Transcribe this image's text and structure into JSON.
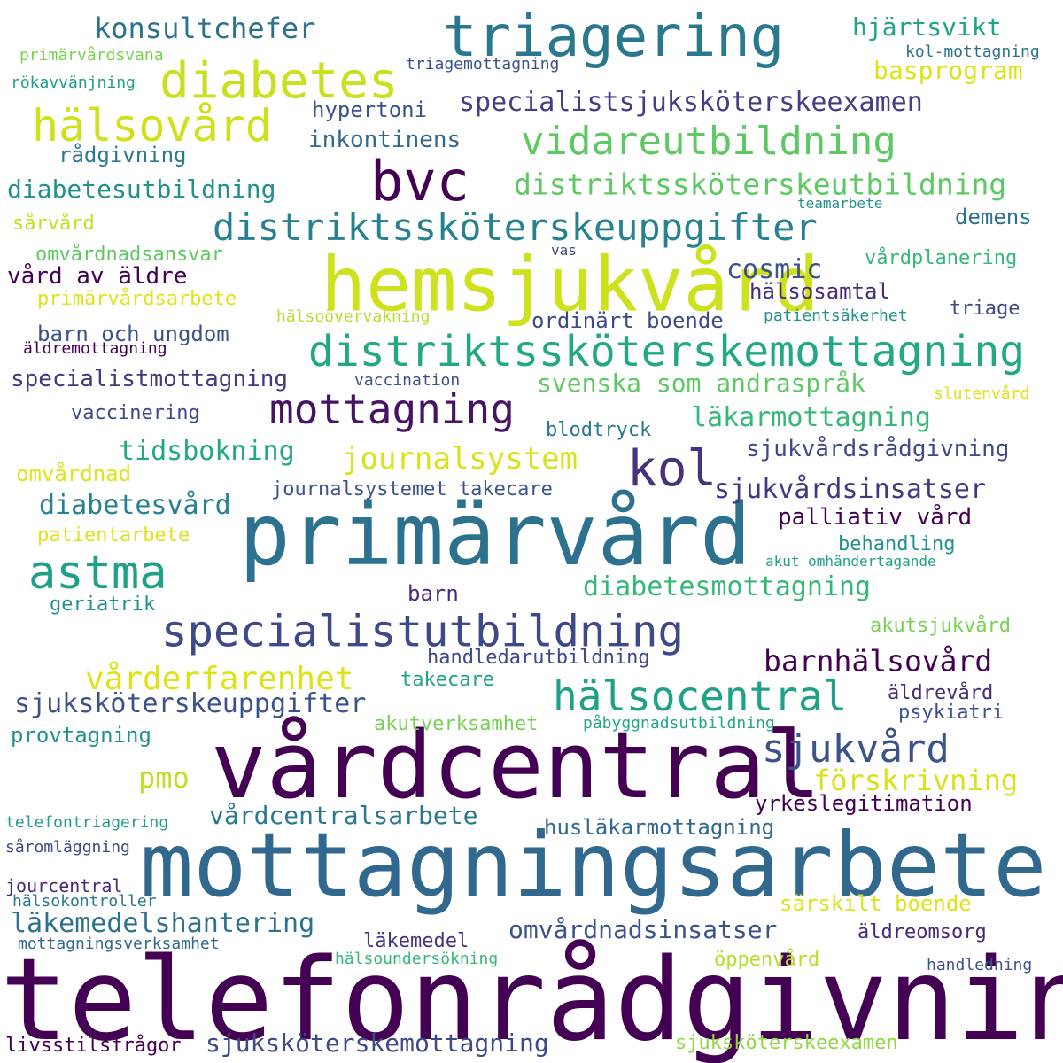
{
  "words": [
    {
      "text": "telefonrådgivning",
      "color": "#440154"
    },
    {
      "text": "mottagningsarbete",
      "color": "#31688e"
    },
    {
      "text": "vårdcentral",
      "color": "#440154"
    },
    {
      "text": "primärvård",
      "color": "#2c728e"
    },
    {
      "text": "hemsjukvård",
      "color": "#cde11d"
    },
    {
      "text": "triagering",
      "color": "#2a788e"
    },
    {
      "text": "bvc",
      "color": "#440154"
    },
    {
      "text": "diabetes",
      "color": "#c8e020"
    },
    {
      "text": "distriktssköterskemottagning",
      "color": "#22a884"
    },
    {
      "text": "specialistutbildning",
      "color": "#3e4989"
    },
    {
      "text": "distriktssköterskeuppgifter",
      "color": "#26828e"
    },
    {
      "text": "hälsovård",
      "color": "#d0e11c"
    },
    {
      "text": "vidareutbildning",
      "color": "#5ec962"
    },
    {
      "text": "hälsocentral",
      "color": "#1fa187"
    },
    {
      "text": "astma",
      "color": "#1fa187"
    },
    {
      "text": "kol",
      "color": "#46327e"
    },
    {
      "text": "mottagning",
      "color": "#471365"
    },
    {
      "text": "sjukvård",
      "color": "#3b528b"
    },
    {
      "text": "distriktssköterskeutbildning",
      "color": "#5ec962"
    },
    {
      "text": "barnhälsovård",
      "color": "#440154"
    },
    {
      "text": "journalsystem",
      "color": "#d8e219"
    },
    {
      "text": "vårderfarenhet",
      "color": "#dde318"
    },
    {
      "text": "specialistsjuksköterskeexamen",
      "color": "#433e85"
    },
    {
      "text": "sjuksköterskeuppgifter",
      "color": "#3b528b"
    },
    {
      "text": "läkemedelshantering",
      "color": "#2c728e"
    },
    {
      "text": "sjukvårdsinsatser",
      "color": "#453781"
    },
    {
      "text": "konsultchefer",
      "color": "#2c728e"
    },
    {
      "text": "läkarmottagning",
      "color": "#35b779"
    },
    {
      "text": "förskrivning",
      "color": "#d8e219"
    },
    {
      "text": "diabetesmottagning",
      "color": "#35b779"
    },
    {
      "text": "omvårdnadsinsatser",
      "color": "#3b528b"
    },
    {
      "text": "sjuksköterskemottagning",
      "color": "#3e4989"
    },
    {
      "text": "diabetesvård",
      "color": "#26828e"
    },
    {
      "text": "svenska som andraspråk",
      "color": "#5ec962"
    },
    {
      "text": "tidsbokning",
      "color": "#22a884"
    },
    {
      "text": "vårdcentralsarbete",
      "color": "#2a788e"
    },
    {
      "text": "hjärtsvikt",
      "color": "#20a486"
    },
    {
      "text": "basprogram",
      "color": "#dde318"
    },
    {
      "text": "pmo",
      "color": "#bddf26"
    },
    {
      "text": "cosmic",
      "color": "#3b528b"
    },
    {
      "text": "diabetesutbildning",
      "color": "#21918c"
    },
    {
      "text": "specialistmottagning",
      "color": "#453781"
    },
    {
      "text": "palliativ vård",
      "color": "#440154"
    },
    {
      "text": "inkontinens",
      "color": "#31688e"
    },
    {
      "text": "hypertoni",
      "color": "#3b528b"
    },
    {
      "text": "rådgivning",
      "color": "#2a788e"
    },
    {
      "text": "vård av äldre",
      "color": "#440154"
    },
    {
      "text": "sjukvårdsrådgivning",
      "color": "#3e4989"
    },
    {
      "text": "journalsystemet takecare",
      "color": "#3b528b"
    },
    {
      "text": "yrkeslegitimation",
      "color": "#440154"
    },
    {
      "text": "husläkarmottagning",
      "color": "#31688e"
    },
    {
      "text": "särskilt boende",
      "color": "#dde318"
    },
    {
      "text": "ordinärt boende",
      "color": "#3e4989"
    },
    {
      "text": "barn och ungdom",
      "color": "#3b528b"
    },
    {
      "text": "hälsosamtal",
      "color": "#472c7a"
    },
    {
      "text": "demens",
      "color": "#2c728e"
    },
    {
      "text": "vårdplanering",
      "color": "#35b779"
    },
    {
      "text": "handledarutbildning",
      "color": "#3e4989"
    },
    {
      "text": "akutsjukvård",
      "color": "#7ad151"
    },
    {
      "text": "provtagning",
      "color": "#21918c"
    },
    {
      "text": "sjuksköterskeexamen",
      "color": "#90d743"
    },
    {
      "text": "omvårdnad",
      "color": "#dde318"
    },
    {
      "text": "vaccinering",
      "color": "#3e4989"
    },
    {
      "text": "blodtryck",
      "color": "#2a788e"
    },
    {
      "text": "behandling",
      "color": "#21918c"
    },
    {
      "text": "barn",
      "color": "#482878"
    },
    {
      "text": "takecare",
      "color": "#20a486"
    },
    {
      "text": "akutverksamhet",
      "color": "#75d054"
    },
    {
      "text": "öppenvård",
      "color": "#b5de2b"
    },
    {
      "text": "psykiatri",
      "color": "#3b528b"
    },
    {
      "text": "äldrevård",
      "color": "#472c7a"
    },
    {
      "text": "äldreomsorg",
      "color": "#482878"
    },
    {
      "text": "läkemedel",
      "color": "#46337e"
    },
    {
      "text": "triage",
      "color": "#3e4989"
    },
    {
      "text": "livsstilsfrågor",
      "color": "#440154"
    },
    {
      "text": "patientarbete",
      "color": "#dde318"
    },
    {
      "text": "geriatrik",
      "color": "#21918c"
    },
    {
      "text": "omvårdnadsansvar",
      "color": "#5ec962"
    },
    {
      "text": "primärvårdsarbete",
      "color": "#dde318"
    },
    {
      "text": "sårvård",
      "color": "#c2df23"
    },
    {
      "text": "telefontriagering",
      "color": "#1f9e89"
    },
    {
      "text": "jourcentral",
      "color": "#482878"
    },
    {
      "text": "såromläggning",
      "color": "#3e4989"
    },
    {
      "text": "hälsokontroller",
      "color": "#2a788e"
    },
    {
      "text": "mottagningsverksamhet",
      "color": "#31688e"
    },
    {
      "text": "hälsoundersökning",
      "color": "#35b779"
    },
    {
      "text": "triagemottagning",
      "color": "#3b528b"
    },
    {
      "text": "primärvårdsvana",
      "color": "#7ad151"
    },
    {
      "text": "rökavvänjning",
      "color": "#1f9e89"
    },
    {
      "text": "kol-mottagning",
      "color": "#2c728e"
    },
    {
      "text": "vaccination",
      "color": "#3b528b"
    },
    {
      "text": "vas",
      "color": "#3e4989"
    },
    {
      "text": "hälsoövervakning",
      "color": "#b5de2b"
    },
    {
      "text": "patientsäkerhet",
      "color": "#21918c"
    },
    {
      "text": "äldremottagning",
      "color": "#440154"
    },
    {
      "text": "slutenvård",
      "color": "#dde318"
    },
    {
      "text": "teamarbete",
      "color": "#21918c"
    },
    {
      "text": "akut omhändertagande",
      "color": "#1f9e89"
    },
    {
      "text": "påbyggnadsutbildning",
      "color": "#22a884"
    },
    {
      "text": "handledning",
      "color": "#3b528b"
    }
  ]
}
